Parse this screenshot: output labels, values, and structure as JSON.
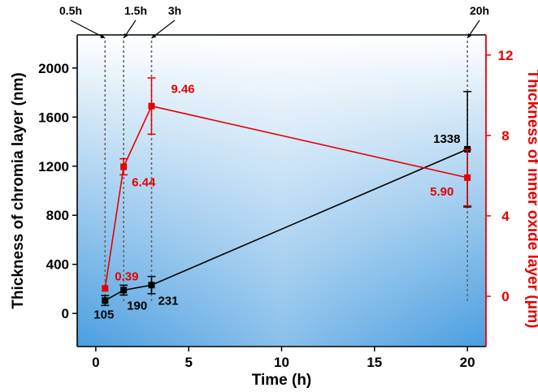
{
  "chart_data": {
    "type": "line",
    "xlabel": "Time (h)",
    "ylabel_left": "Thickness of chromia layer (nm)",
    "ylabel_right": "Thickness of inner oxide layer (μm)",
    "xlim": [
      -1,
      21
    ],
    "ylim_left": [
      -270,
      2270
    ],
    "ylim_right": [
      -2.5,
      13
    ],
    "x_ticks": [
      0,
      5,
      10,
      15,
      20
    ],
    "y_left_ticks": [
      0,
      400,
      800,
      1200,
      1600,
      2000
    ],
    "y_right_ticks": [
      0,
      4,
      8,
      12
    ],
    "colors": {
      "chromia": "#000000",
      "inner_oxide": "#e60000",
      "background_light": "#ffffff",
      "background_dark": "#4a9ee0"
    },
    "series": [
      {
        "axis": "left",
        "color": "#000000",
        "x": [
          0.5,
          1.5,
          3,
          20
        ],
        "y": [
          105,
          190,
          231,
          1338
        ],
        "error": [
          40,
          40,
          70,
          470
        ],
        "labels": [
          "105",
          "190",
          "231",
          "1338"
        ]
      },
      {
        "axis": "right",
        "color": "#e60000",
        "x": [
          0.5,
          1.5,
          3,
          20
        ],
        "y": [
          0.39,
          6.44,
          9.46,
          5.9
        ],
        "error": [
          0,
          0.4,
          1.4,
          1.4
        ],
        "labels": [
          "0.39",
          "6.44",
          "9.46",
          "5.90"
        ]
      }
    ],
    "annotations": [
      {
        "text": "0.5h",
        "x": 0.5
      },
      {
        "text": "1.5h",
        "x": 1.5
      },
      {
        "text": "3h",
        "x": 3
      },
      {
        "text": "20h",
        "x": 20
      }
    ]
  }
}
